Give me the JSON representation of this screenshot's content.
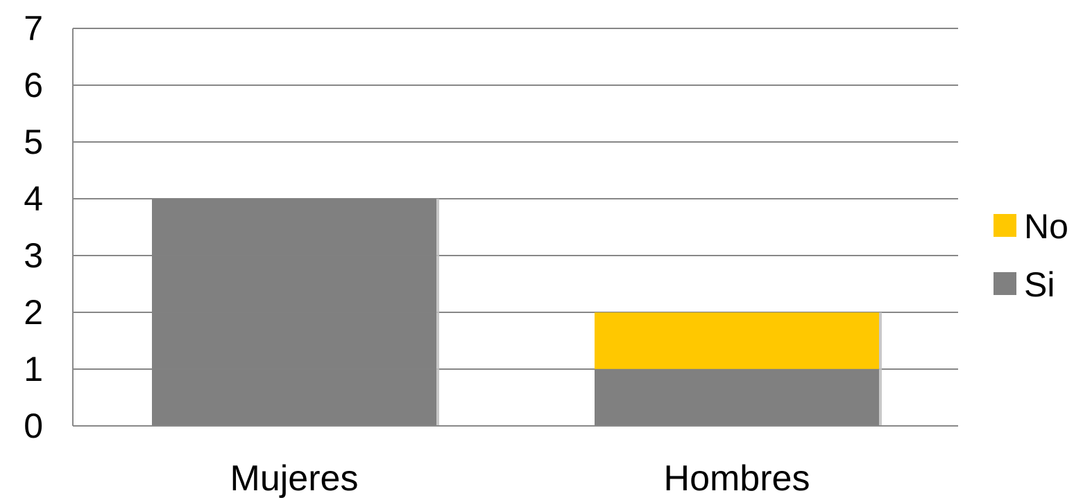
{
  "chart_data": {
    "type": "bar",
    "stacked": true,
    "categories": [
      "Mujeres",
      "Hombres"
    ],
    "series": [
      {
        "name": "Si",
        "values": [
          4,
          1
        ],
        "color": "#808080"
      },
      {
        "name": "No",
        "values": [
          0,
          1
        ],
        "color": "#FFC800"
      }
    ],
    "title": "",
    "xlabel": "",
    "ylabel": "",
    "ylim": [
      0,
      7
    ],
    "yticks": [
      0,
      1,
      2,
      3,
      4,
      5,
      6,
      7
    ],
    "grid": true,
    "legend": {
      "position": "right",
      "order": [
        "No",
        "Si"
      ]
    }
  }
}
